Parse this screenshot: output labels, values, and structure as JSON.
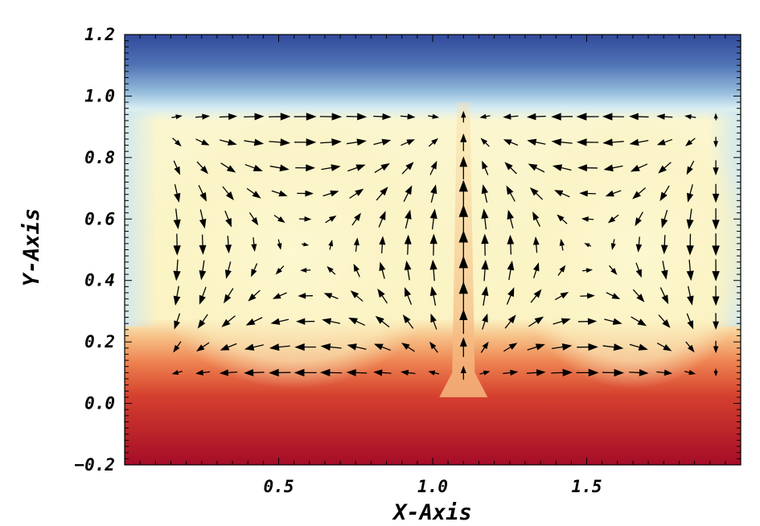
{
  "chart_data": {
    "type": "vector-field-heatmap",
    "title": "",
    "xlabel": "X-Axis",
    "ylabel": "Y-Axis",
    "xlim": [
      0.0,
      2.0
    ],
    "ylim": [
      -0.2,
      1.2
    ],
    "x_ticks": [
      {
        "value": 0.5,
        "label": "0.5"
      },
      {
        "value": 1.0,
        "label": "1.0"
      },
      {
        "value": 1.5,
        "label": "1.5"
      }
    ],
    "y_ticks": [
      {
        "value": -0.2,
        "label": "−0.2"
      },
      {
        "value": 0.0,
        "label": "0.0"
      },
      {
        "value": 0.2,
        "label": "0.2"
      },
      {
        "value": 0.4,
        "label": "0.4"
      },
      {
        "value": 0.6,
        "label": "0.6"
      },
      {
        "value": 0.8,
        "label": "0.8"
      },
      {
        "value": 1.0,
        "label": "1.0"
      },
      {
        "value": 1.2,
        "label": "1.2"
      }
    ],
    "colormap": "RdYlBu_r",
    "colors": {
      "hot": "#b0112a",
      "warm": "#f4a06a",
      "neutral": "#fbf7c8",
      "cool": "#cfe9f2",
      "cold": "#3c5aa8",
      "arrows": "#000000"
    },
    "field": {
      "description": "two counter-rotating convection cells with a central upward plume",
      "plume_x": 1.1,
      "left_cell_center": [
        0.55,
        0.45
      ],
      "right_cell_center": [
        1.65,
        0.45
      ],
      "cell_y_range": [
        0.1,
        0.9
      ],
      "grid_x_step": 0.0833,
      "grid_y_step": 0.0833
    }
  }
}
